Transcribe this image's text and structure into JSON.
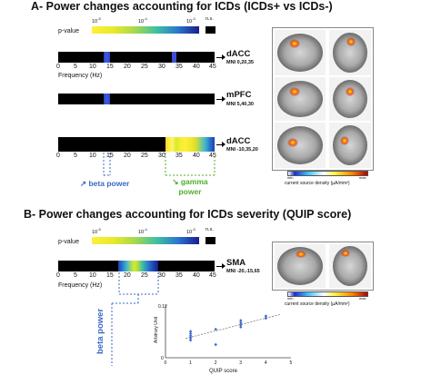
{
  "panel_a": {
    "title": "A- Power changes accounting for ICDs (ICDs+ vs ICDs-)",
    "pvalue_label": "p-value",
    "pvalue_ticks": [
      "10",
      "10",
      "10"
    ],
    "pvalue_exps": [
      "-5",
      "-4",
      "-3"
    ],
    "ns_label": "n.s.",
    "freq_ticks": [
      "0",
      "5",
      "10",
      "15",
      "20",
      "25",
      "30",
      "35",
      "40",
      "45"
    ],
    "freq_axis_label": "Frequency (Hz)",
    "rows": [
      {
        "region": "dACC",
        "mni": "MNI 0,20,35"
      },
      {
        "region": "mPFC",
        "mni": "MNI 5,40,30"
      },
      {
        "region": "dACC",
        "mni": "MNI -10,35,20"
      }
    ],
    "beta_label": "↗ beta power",
    "gamma_label_line1": "↘ gamma",
    "gamma_label_line2": "power",
    "colorbar_min": "min",
    "colorbar_max": "max",
    "colorbar_caption": "current source density (µA/mm²)"
  },
  "panel_b": {
    "title": "B- Power changes accounting for ICDs severity (QUIP score)",
    "pvalue_label": "p-value",
    "pvalue_ticks": [
      "10",
      "10",
      "10"
    ],
    "pvalue_exps": [
      "-5",
      "-4",
      "-3"
    ],
    "ns_label": "n.s.",
    "freq_ticks": [
      "0",
      "5",
      "10",
      "15",
      "20",
      "25",
      "30",
      "35",
      "40",
      "45"
    ],
    "freq_axis_label": "Frequency (Hz)",
    "region": "SMA",
    "mni": "MNI -20,-15,65",
    "beta_label": "beta power",
    "colorbar_min": "min",
    "colorbar_max": "max",
    "colorbar_caption": "current source density (µA/mm²)",
    "scatter": {
      "ylabel": "Arbitrary Unit",
      "xlabel": "QUIP score",
      "ytick_top": "0.12",
      "ytick_bottom": "0",
      "x_ticks": [
        "0",
        "1",
        "2",
        "3",
        "4",
        "5"
      ]
    }
  },
  "colors": {
    "beta_blue": "#3a68c6",
    "gamma_green": "#4fae2d",
    "bar_black": "#000000"
  },
  "chart_data": {
    "type": "scatter",
    "xlabel": "QUIP score",
    "ylabel": "Arbitrary Unit",
    "xlim": [
      0,
      5
    ],
    "ylim": [
      0,
      0.12
    ],
    "x": [
      1,
      1,
      1,
      1,
      1,
      2,
      2,
      3,
      3,
      3,
      3,
      4,
      4
    ],
    "y": [
      0.06,
      0.055,
      0.05,
      0.045,
      0.04,
      0.03,
      0.065,
      0.07,
      0.075,
      0.08,
      0.085,
      0.09,
      0.095
    ],
    "trendline": true
  }
}
